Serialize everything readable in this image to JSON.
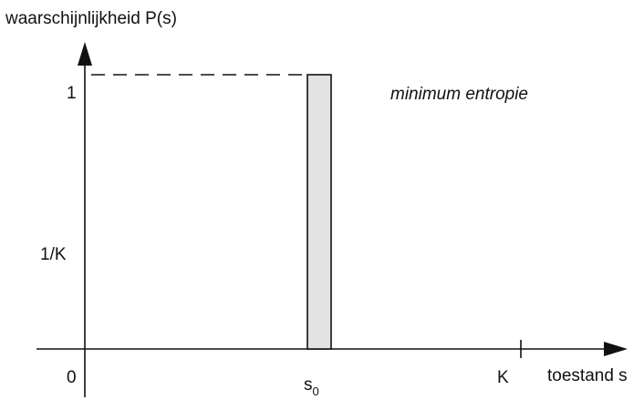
{
  "chart_data": {
    "type": "bar",
    "ylabel": "waarschijnlijkheid P(s)",
    "xlabel": "toestand s",
    "y_ticks": [
      "1",
      "1/K",
      "0"
    ],
    "x_ticks": [
      {
        "base": "s",
        "sub": "0"
      },
      {
        "base": "K",
        "sub": ""
      }
    ],
    "bars": [
      {
        "category": "s0",
        "value": 1
      }
    ],
    "reference_line": {
      "value": 1,
      "style": "dashed"
    },
    "annotation": "minimum entropie",
    "xlim": [
      0,
      10
    ],
    "ylim": [
      0,
      1
    ],
    "grid": false
  },
  "colors": {
    "bar_fill": "#e3e3e3",
    "stroke": "#111111"
  }
}
